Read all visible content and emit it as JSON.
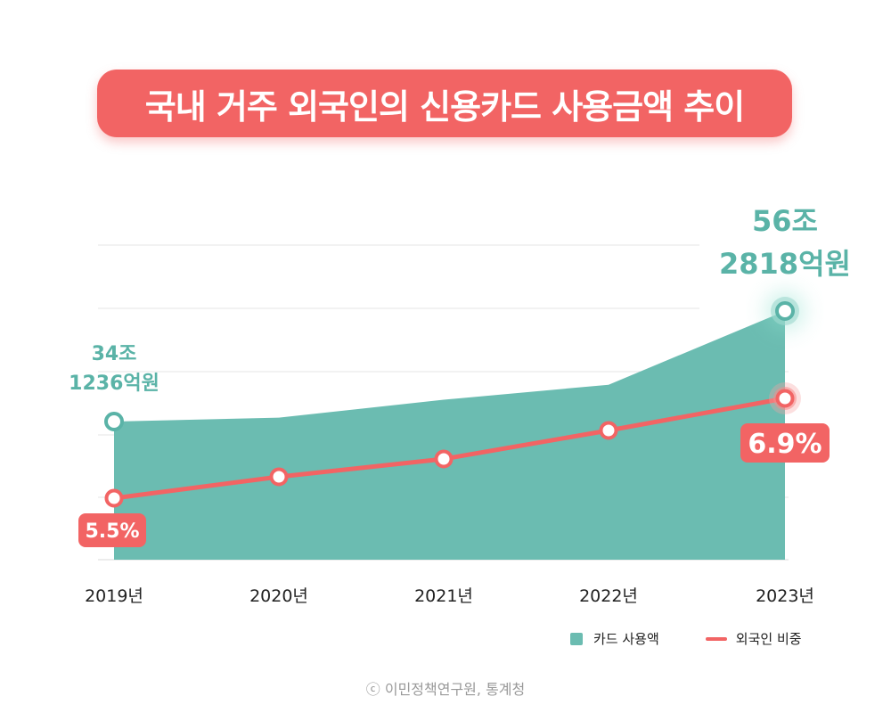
{
  "title": "국내 거주 외국인의 신용카드 사용금액 추이",
  "chart_data": {
    "type": "area",
    "categories": [
      "2019년",
      "2020년",
      "2021년",
      "2022년",
      "2023년"
    ],
    "series": [
      {
        "name": "카드 사용액",
        "type": "area",
        "values": [
          34.12,
          34.9,
          38.5,
          41.5,
          56.28
        ],
        "color": "#6bbcb1"
      },
      {
        "name": "외국인 비중",
        "type": "line",
        "values": [
          5.5,
          5.8,
          6.05,
          6.45,
          6.9
        ],
        "color": "#f26464"
      }
    ],
    "annotations": {
      "first_amount": [
        "34조",
        "1236억원"
      ],
      "last_amount": [
        "56조",
        "2818억원"
      ],
      "first_share": "5.5%",
      "last_share": "6.9%"
    },
    "grid": true
  },
  "legend": {
    "area_label": "카드 사용액",
    "line_label": "외국인 비중"
  },
  "source": "ⓒ 이민정책연구원, 통계청"
}
